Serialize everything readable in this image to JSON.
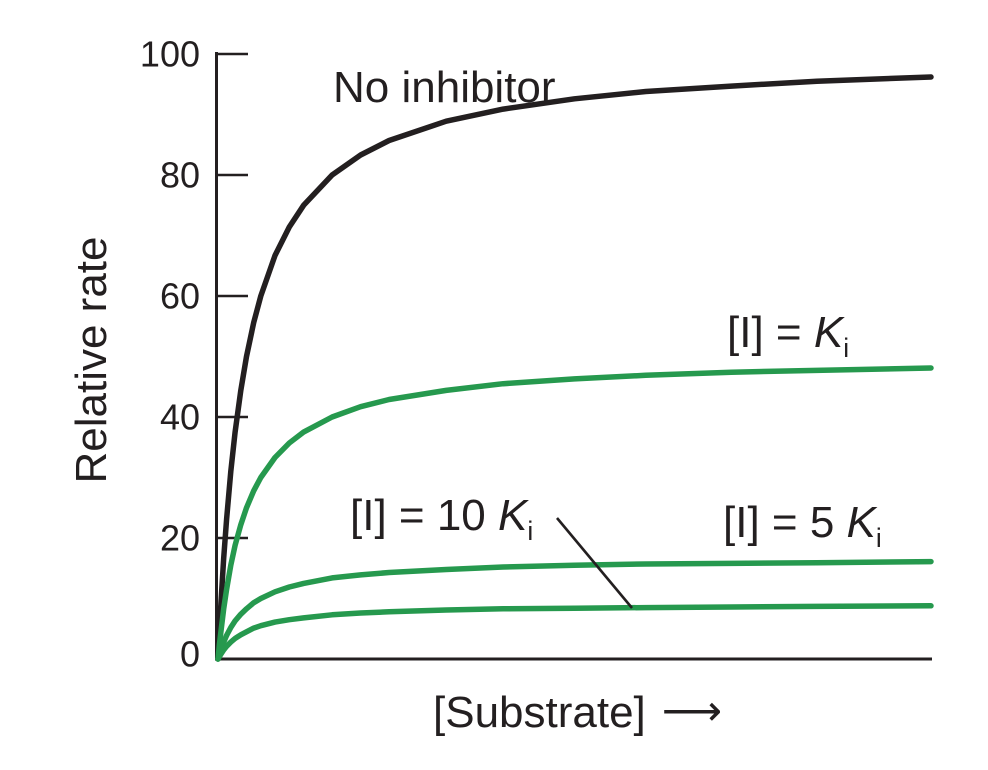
{
  "chart_data": {
    "type": "line",
    "title": "",
    "xlabel": "[Substrate]",
    "xlabel_arrow": "⟶",
    "ylabel": "Relative rate",
    "ylim": [
      0,
      100
    ],
    "yticks": [
      0,
      20,
      40,
      60,
      80,
      100
    ],
    "x_axis_ticks": "none",
    "grid": "off",
    "legend": "none (curves labeled by annotations)",
    "x_units": "substrate concentration in multiples of Km, 0 to 25",
    "s_values": [
      0,
      0.05,
      0.1,
      0.2,
      0.3,
      0.45,
      0.6,
      0.8,
      1,
      1.25,
      1.5,
      2,
      2.5,
      3,
      4,
      5,
      6,
      8,
      10,
      12.5,
      15,
      18,
      21,
      25
    ],
    "series": [
      {
        "id": "no-inhibitor",
        "name": "No inhibitor",
        "color": "#231f20",
        "vmax_apparent": 100,
        "values": [
          0,
          4.8,
          9.1,
          16.7,
          23.1,
          31.0,
          37.5,
          44.4,
          50,
          55.6,
          60,
          66.7,
          71.4,
          75,
          80,
          83.3,
          85.7,
          88.9,
          90.9,
          92.6,
          93.8,
          94.7,
          95.5,
          96.2
        ]
      },
      {
        "id": "i-equals-ki",
        "name": "[I] = Ki",
        "color": "#26994e",
        "vmax_apparent": 50,
        "values": [
          0,
          2.4,
          4.5,
          8.3,
          11.5,
          15.5,
          18.8,
          22.2,
          25,
          27.8,
          30,
          33.3,
          35.7,
          37.5,
          40,
          41.7,
          42.9,
          44.4,
          45.5,
          46.3,
          46.9,
          47.4,
          47.7,
          48.1
        ]
      },
      {
        "id": "i-equals-5ki",
        "name": "[I] = 5 Ki",
        "color": "#26994e",
        "vmax_apparent": 16.7,
        "values": [
          0,
          0.8,
          1.5,
          2.8,
          3.9,
          5.2,
          6.3,
          7.4,
          8.3,
          9.3,
          10,
          11.1,
          11.9,
          12.5,
          13.4,
          13.9,
          14.3,
          14.8,
          15.2,
          15.5,
          15.7,
          15.8,
          15.9,
          16.1
        ]
      },
      {
        "id": "i-equals-10ki",
        "name": "[I] = 10 Ki",
        "color": "#26994e",
        "vmax_apparent": 9.1,
        "values": [
          0,
          0.4,
          0.8,
          1.5,
          2.1,
          2.8,
          3.4,
          4.0,
          4.5,
          5.1,
          5.5,
          6.1,
          6.5,
          6.8,
          7.3,
          7.6,
          7.8,
          8.1,
          8.3,
          8.4,
          8.5,
          8.6,
          8.7,
          8.8
        ]
      }
    ],
    "annotations": {
      "no_inhibitor": {
        "text": "No inhibitor"
      },
      "ki": {
        "prefix": "[I] = ",
        "symbol": "K",
        "subscript": "i"
      },
      "ki10": {
        "prefix": "[I] = 10 ",
        "symbol": "K",
        "subscript": "i"
      },
      "ki5": {
        "prefix": "[I] = 5 ",
        "symbol": "K",
        "subscript": "i"
      }
    },
    "colors": {
      "axis": "#231f20",
      "text": "#231f20",
      "inhibited_curves": "#26994e",
      "uninhibited_curve": "#231f20"
    }
  }
}
